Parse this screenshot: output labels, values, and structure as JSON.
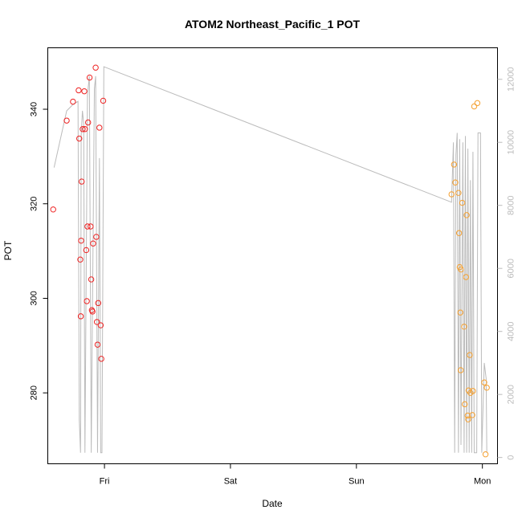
{
  "chart_data": {
    "type": "scatter",
    "title": "ATOM2 Northeast_Pacific_1 POT",
    "xlabel": "Date",
    "ylabel": "POT",
    "x_unit": "days since Thu 00:00",
    "xlim": [
      0.55,
      4.12
    ],
    "ylim": [
      265,
      353
    ],
    "y2lim": [
      -200,
      13000
    ],
    "x_ticks": [
      {
        "v": 1,
        "label": "Fri"
      },
      {
        "v": 2,
        "label": "Sat"
      },
      {
        "v": 3,
        "label": "Sun"
      },
      {
        "v": 4,
        "label": "Mon"
      }
    ],
    "y_ticks": [
      280,
      300,
      320,
      340
    ],
    "y2_ticks": [
      0,
      2000,
      4000,
      6000,
      8000,
      10000,
      12000
    ],
    "colors": {
      "early": "#ee2222",
      "late": "#f5a030",
      "line": "#bbbbbb",
      "axis": "#000000",
      "right_axis": "#bbbbbb"
    },
    "series": [
      {
        "values": [
          [
            0.593,
            318.8
          ],
          [
            0.7,
            337.6
          ],
          [
            0.75,
            341.6
          ],
          [
            0.795,
            344.0
          ],
          [
            0.8,
            333.8
          ],
          [
            0.808,
            308.2
          ],
          [
            0.812,
            296.2
          ],
          [
            0.815,
            312.2
          ],
          [
            0.819,
            324.7
          ],
          [
            0.827,
            335.8
          ],
          [
            0.84,
            343.8
          ],
          [
            0.845,
            335.8
          ],
          [
            0.855,
            310.2
          ],
          [
            0.86,
            299.4
          ],
          [
            0.865,
            315.2
          ],
          [
            0.87,
            337.2
          ],
          [
            0.882,
            346.7
          ],
          [
            0.89,
            315.2
          ],
          [
            0.895,
            304.0
          ],
          [
            0.9,
            297.5
          ],
          [
            0.905,
            297.2
          ],
          [
            0.91,
            311.6
          ],
          [
            0.93,
            348.8
          ],
          [
            0.935,
            313.0
          ],
          [
            0.94,
            295.0
          ],
          [
            0.945,
            290.2
          ],
          [
            0.95,
            299.0
          ],
          [
            0.96,
            336.1
          ],
          [
            0.97,
            294.3
          ],
          [
            0.975,
            287.2
          ],
          [
            0.99,
            341.8
          ]
        ]
      },
      {
        "values": [
          [
            3.755,
            322.0
          ],
          [
            3.775,
            328.3
          ],
          [
            3.785,
            324.5
          ],
          [
            3.81,
            322.3
          ],
          [
            3.815,
            313.8
          ],
          [
            3.82,
            306.6
          ],
          [
            3.825,
            297.0
          ],
          [
            3.828,
            284.8
          ],
          [
            3.83,
            306.1
          ],
          [
            3.84,
            320.2
          ],
          [
            3.855,
            294.0
          ],
          [
            3.86,
            277.6
          ],
          [
            3.87,
            304.5
          ],
          [
            3.875,
            317.6
          ],
          [
            3.883,
            275.2
          ],
          [
            3.887,
            274.4
          ],
          [
            3.89,
            280.5
          ],
          [
            3.9,
            288.0
          ],
          [
            3.905,
            280.0
          ],
          [
            3.92,
            275.3
          ],
          [
            3.925,
            280.4
          ],
          [
            3.935,
            340.6
          ],
          [
            3.96,
            341.3
          ],
          [
            4.015,
            282.2
          ],
          [
            4.025,
            267.0
          ],
          [
            4.035,
            281.1
          ]
        ]
      }
    ],
    "line_series": {
      "axis": "right",
      "points": [
        [
          0.6,
          9200
        ],
        [
          0.7,
          11000
        ],
        [
          0.75,
          11200
        ],
        [
          0.79,
          11300
        ],
        [
          0.8,
          1200
        ],
        [
          0.81,
          150
        ],
        [
          0.815,
          10200
        ],
        [
          0.825,
          11000
        ],
        [
          0.835,
          10600
        ],
        [
          0.845,
          150
        ],
        [
          0.865,
          11500
        ],
        [
          0.88,
          12100
        ],
        [
          0.895,
          150
        ],
        [
          0.92,
          11700
        ],
        [
          0.93,
          12100
        ],
        [
          0.945,
          150
        ],
        [
          0.96,
          9500
        ],
        [
          0.97,
          150
        ],
        [
          0.98,
          150
        ],
        [
          0.995,
          12400
        ],
        [
          3.755,
          8100
        ],
        [
          3.77,
          10000
        ],
        [
          3.78,
          150
        ],
        [
          3.79,
          9600
        ],
        [
          3.8,
          10300
        ],
        [
          3.81,
          150
        ],
        [
          3.82,
          10100
        ],
        [
          3.83,
          400
        ],
        [
          3.845,
          10000
        ],
        [
          3.855,
          150
        ],
        [
          3.865,
          10200
        ],
        [
          3.875,
          150
        ],
        [
          3.885,
          9800
        ],
        [
          3.895,
          150
        ],
        [
          3.905,
          8800
        ],
        [
          3.915,
          150
        ],
        [
          3.925,
          9700
        ],
        [
          3.935,
          150
        ],
        [
          3.955,
          150
        ],
        [
          3.965,
          10300
        ],
        [
          3.985,
          10300
        ],
        [
          3.995,
          150
        ],
        [
          4.015,
          3000
        ],
        [
          4.03,
          2500
        ],
        [
          4.035,
          150
        ]
      ]
    }
  }
}
